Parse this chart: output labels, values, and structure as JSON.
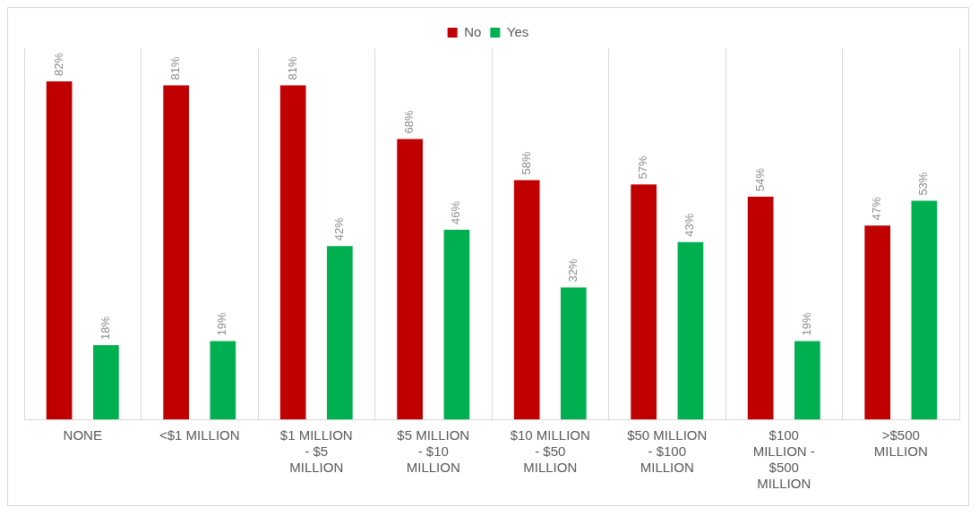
{
  "chart_data": {
    "type": "bar",
    "categories": [
      "NONE",
      "<$1 MILLION",
      "$1 MILLION - $5 MILLION",
      "$5 MILLION - $10 MILLION",
      "$10 MILLION - $50 MILLION",
      "$50 MILLION - $100 MILLION",
      "$100 MILLION - $500 MILLION",
      ">$500 MILLION"
    ],
    "series": [
      {
        "name": "No",
        "color": "#c00000",
        "values": [
          82,
          81,
          81,
          68,
          58,
          57,
          54,
          47
        ],
        "value_labels": [
          "82%",
          "81%",
          "81%",
          "68%",
          "58%",
          "57%",
          "54%",
          "47%"
        ]
      },
      {
        "name": "Yes",
        "color": "#00b050",
        "values": [
          18,
          19,
          42,
          46,
          32,
          43,
          19,
          53
        ],
        "value_labels": [
          "18%",
          "19%",
          "42%",
          "46%",
          "32%",
          "43%",
          "19%",
          "53%"
        ]
      }
    ],
    "relative": false,
    "grid": "x",
    "legend": "top"
  }
}
